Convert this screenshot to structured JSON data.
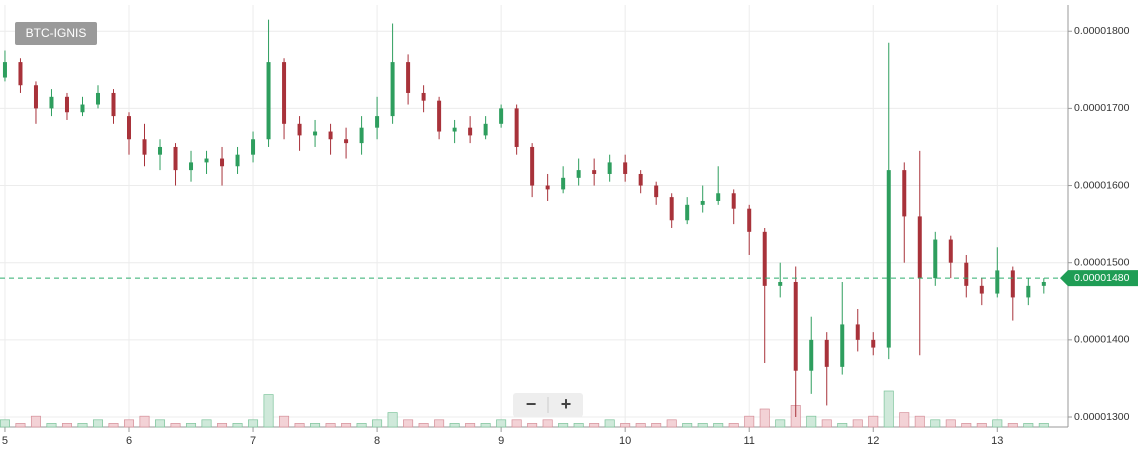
{
  "chart_data": {
    "type": "candlestick",
    "symbol": "BTC-IGNIS",
    "x": [
      5,
      5.125,
      5.25,
      5.375,
      5.5,
      5.625,
      5.75,
      5.875,
      6,
      6.125,
      6.25,
      6.375,
      6.5,
      6.625,
      6.75,
      6.875,
      7,
      7.125,
      7.25,
      7.375,
      7.5,
      7.625,
      7.75,
      7.875,
      8,
      8.125,
      8.25,
      8.375,
      8.5,
      8.625,
      8.75,
      8.875,
      9,
      9.125,
      9.25,
      9.375,
      9.5,
      9.625,
      9.75,
      9.875,
      10,
      10.125,
      10.25,
      10.375,
      10.5,
      10.625,
      10.75,
      10.875,
      11,
      11.125,
      11.25,
      11.375,
      11.5,
      11.625,
      11.75,
      11.875,
      12,
      12.125,
      12.25,
      12.375,
      12.5,
      12.625,
      12.75,
      12.875,
      13,
      13.125,
      13.25,
      13.375
    ],
    "open": [
      1.74e-05,
      1.76e-05,
      1.73e-05,
      1.7e-05,
      1.715e-05,
      1.695e-05,
      1.705e-05,
      1.72e-05,
      1.69e-05,
      1.66e-05,
      1.64e-05,
      1.65e-05,
      1.62e-05,
      1.63e-05,
      1.635e-05,
      1.625e-05,
      1.64e-05,
      1.66e-05,
      1.76e-05,
      1.68e-05,
      1.665e-05,
      1.67e-05,
      1.66e-05,
      1.655e-05,
      1.675e-05,
      1.69e-05,
      1.76e-05,
      1.72e-05,
      1.71e-05,
      1.67e-05,
      1.675e-05,
      1.665e-05,
      1.68e-05,
      1.7e-05,
      1.65e-05,
      1.6e-05,
      1.595e-05,
      1.61e-05,
      1.62e-05,
      1.615e-05,
      1.63e-05,
      1.615e-05,
      1.6e-05,
      1.585e-05,
      1.555e-05,
      1.575e-05,
      1.58e-05,
      1.59e-05,
      1.57e-05,
      1.54e-05,
      1.47e-05,
      1.475e-05,
      1.36e-05,
      1.4e-05,
      1.365e-05,
      1.42e-05,
      1.4e-05,
      1.39e-05,
      1.62e-05,
      1.56e-05,
      1.48e-05,
      1.53e-05,
      1.5e-05,
      1.47e-05,
      1.46e-05,
      1.49e-05,
      1.455e-05,
      1.47e-05
    ],
    "high": [
      1.775e-05,
      1.765e-05,
      1.735e-05,
      1.725e-05,
      1.72e-05,
      1.715e-05,
      1.73e-05,
      1.725e-05,
      1.695e-05,
      1.68e-05,
      1.66e-05,
      1.655e-05,
      1.645e-05,
      1.645e-05,
      1.65e-05,
      1.65e-05,
      1.67e-05,
      1.815e-05,
      1.765e-05,
      1.69e-05,
      1.685e-05,
      1.68e-05,
      1.675e-05,
      1.69e-05,
      1.715e-05,
      1.81e-05,
      1.77e-05,
      1.73e-05,
      1.715e-05,
      1.685e-05,
      1.69e-05,
      1.69e-05,
      1.705e-05,
      1.705e-05,
      1.655e-05,
      1.615e-05,
      1.625e-05,
      1.635e-05,
      1.635e-05,
      1.64e-05,
      1.64e-05,
      1.62e-05,
      1.605e-05,
      1.59e-05,
      1.585e-05,
      1.6e-05,
      1.625e-05,
      1.595e-05,
      1.575e-05,
      1.545e-05,
      1.5e-05,
      1.495e-05,
      1.43e-05,
      1.41e-05,
      1.475e-05,
      1.44e-05,
      1.41e-05,
      1.785e-05,
      1.63e-05,
      1.645e-05,
      1.54e-05,
      1.535e-05,
      1.51e-05,
      1.48e-05,
      1.52e-05,
      1.495e-05,
      1.48e-05,
      1.48e-05
    ],
    "low": [
      1.735e-05,
      1.72e-05,
      1.68e-05,
      1.69e-05,
      1.685e-05,
      1.69e-05,
      1.7e-05,
      1.68e-05,
      1.64e-05,
      1.625e-05,
      1.62e-05,
      1.6e-05,
      1.605e-05,
      1.615e-05,
      1.6e-05,
      1.615e-05,
      1.63e-05,
      1.65e-05,
      1.66e-05,
      1.645e-05,
      1.65e-05,
      1.64e-05,
      1.635e-05,
      1.64e-05,
      1.66e-05,
      1.68e-05,
      1.705e-05,
      1.695e-05,
      1.66e-05,
      1.655e-05,
      1.655e-05,
      1.66e-05,
      1.675e-05,
      1.64e-05,
      1.585e-05,
      1.58e-05,
      1.59e-05,
      1.6e-05,
      1.6e-05,
      1.605e-05,
      1.605e-05,
      1.59e-05,
      1.575e-05,
      1.545e-05,
      1.55e-05,
      1.565e-05,
      1.575e-05,
      1.55e-05,
      1.51e-05,
      1.37e-05,
      1.455e-05,
      1.3e-05,
      1.33e-05,
      1.315e-05,
      1.355e-05,
      1.385e-05,
      1.38e-05,
      1.375e-05,
      1.5e-05,
      1.38e-05,
      1.47e-05,
      1.48e-05,
      1.455e-05,
      1.445e-05,
      1.455e-05,
      1.425e-05,
      1.445e-05,
      1.46e-05
    ],
    "close": [
      1.76e-05,
      1.73e-05,
      1.7e-05,
      1.715e-05,
      1.695e-05,
      1.705e-05,
      1.72e-05,
      1.69e-05,
      1.66e-05,
      1.64e-05,
      1.65e-05,
      1.62e-05,
      1.63e-05,
      1.635e-05,
      1.625e-05,
      1.64e-05,
      1.66e-05,
      1.76e-05,
      1.68e-05,
      1.665e-05,
      1.67e-05,
      1.66e-05,
      1.655e-05,
      1.675e-05,
      1.69e-05,
      1.76e-05,
      1.72e-05,
      1.71e-05,
      1.67e-05,
      1.675e-05,
      1.665e-05,
      1.68e-05,
      1.7e-05,
      1.65e-05,
      1.6e-05,
      1.595e-05,
      1.61e-05,
      1.62e-05,
      1.615e-05,
      1.63e-05,
      1.615e-05,
      1.6e-05,
      1.585e-05,
      1.555e-05,
      1.575e-05,
      1.58e-05,
      1.59e-05,
      1.57e-05,
      1.54e-05,
      1.47e-05,
      1.475e-05,
      1.36e-05,
      1.4e-05,
      1.365e-05,
      1.42e-05,
      1.4e-05,
      1.39e-05,
      1.62e-05,
      1.56e-05,
      1.48e-05,
      1.53e-05,
      1.5e-05,
      1.47e-05,
      1.46e-05,
      1.49e-05,
      1.455e-05,
      1.47e-05,
      1.475e-05
    ],
    "volume": [
      2,
      1,
      3,
      1,
      1,
      1,
      2,
      1,
      2,
      3,
      2,
      1,
      1,
      2,
      1,
      1,
      2,
      9,
      3,
      1,
      1,
      1,
      1,
      1,
      2,
      4,
      2,
      1,
      2,
      1,
      1,
      1,
      2,
      2,
      1,
      2,
      1,
      1,
      1,
      2,
      1,
      1,
      1,
      2,
      1,
      1,
      1,
      1,
      3,
      5,
      2,
      6,
      3,
      2,
      1,
      2,
      3,
      10,
      4,
      3,
      2,
      2,
      1,
      1,
      2,
      1,
      1,
      1
    ],
    "xlim": [
      4.96,
      13.57
    ],
    "xticks": [
      5,
      6,
      7,
      8,
      9,
      10,
      11,
      12,
      13
    ],
    "ylim": [
      1.28705e-05,
      1.834e-05
    ],
    "yticks": [
      {
        "value": 1.3e-05,
        "label": "0.00001300"
      },
      {
        "value": 1.4e-05,
        "label": "0.00001400"
      },
      {
        "value": 1.5e-05,
        "label": "0.00001500"
      },
      {
        "value": 1.6e-05,
        "label": "0.00001600"
      },
      {
        "value": 1.7e-05,
        "label": "0.00001700"
      },
      {
        "value": 1.8e-05,
        "label": "0.00001800"
      }
    ],
    "last_price": {
      "value": 1.48e-05,
      "label": "0.00001480"
    },
    "up_color": "#2e9e5e",
    "down_color": "#a8323a",
    "grid": true
  },
  "controls": {
    "zoom_out": "−",
    "zoom_in": "+"
  }
}
